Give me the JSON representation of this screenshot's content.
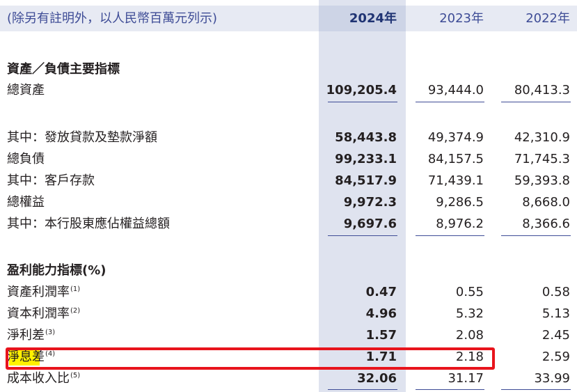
{
  "header": {
    "note": "(除另有註明外，以人民幣百萬元列示)",
    "years": [
      "2024年",
      "2023年",
      "2022年"
    ]
  },
  "sections": [
    {
      "title": "資產／負債主要指標",
      "rows": [
        {
          "label": "總資產",
          "fn": "",
          "values": [
            "109,205.4",
            "93,444.0",
            "80,413.3"
          ]
        },
        {
          "label": "其中：發放貸款及墊款淨額",
          "fn": "",
          "values": [
            "58,443.8",
            "49,374.9",
            "42,310.9"
          ]
        },
        {
          "label": "總負債",
          "fn": "",
          "values": [
            "99,233.1",
            "84,157.5",
            "71,745.3"
          ]
        },
        {
          "label": "其中：客戶存款",
          "fn": "",
          "values": [
            "84,517.9",
            "71,439.1",
            "59,393.8"
          ]
        },
        {
          "label": "總權益",
          "fn": "",
          "values": [
            "9,972.3",
            "9,286.5",
            "8,668.0"
          ]
        },
        {
          "label": "其中：本行股東應佔權益總額",
          "fn": "",
          "values": [
            "9,697.6",
            "8,976.2",
            "8,366.6"
          ]
        }
      ]
    },
    {
      "title": "盈利能力指標(%)",
      "rows": [
        {
          "label": "資產利潤率",
          "fn": "(1)",
          "values": [
            "0.47",
            "0.55",
            "0.58"
          ]
        },
        {
          "label": "資本利潤率",
          "fn": "(2)",
          "values": [
            "4.96",
            "5.32",
            "5.13"
          ]
        },
        {
          "label": "淨利差",
          "fn": "(3)",
          "values": [
            "1.57",
            "2.08",
            "2.45"
          ]
        },
        {
          "label": "淨息差",
          "fn": "(4)",
          "values": [
            "1.71",
            "2.18",
            "2.59"
          ]
        },
        {
          "label": "成本收入比",
          "fn": "(5)",
          "values": [
            "32.06",
            "31.17",
            "33.99"
          ]
        }
      ]
    }
  ],
  "highlight": {
    "row_label": "淨息差",
    "marker_color": "#fff200",
    "box_color": "#e8141c"
  },
  "colors": {
    "accent": "#3e4c96",
    "highlight_column": "#dfe3ef",
    "header_band": "#e7eaf3"
  }
}
